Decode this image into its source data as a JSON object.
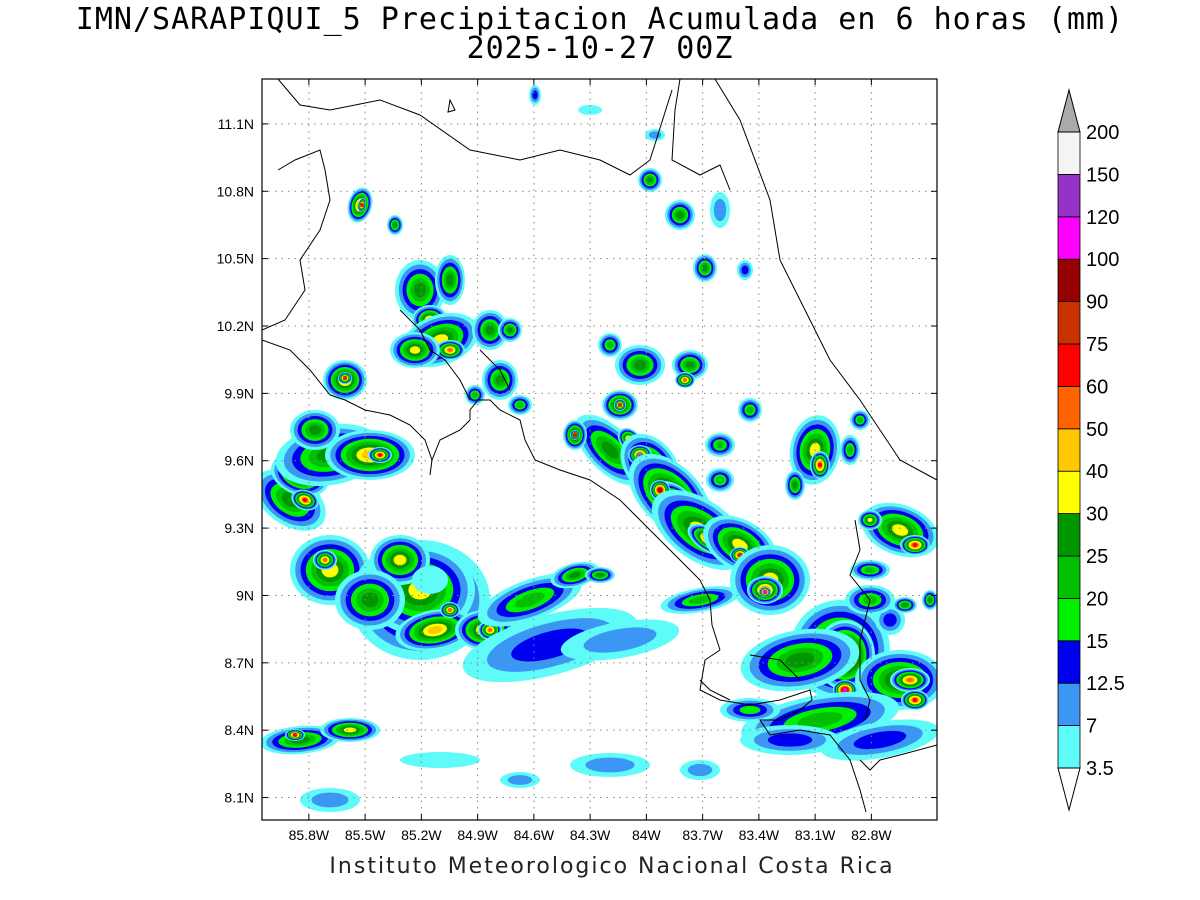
{
  "title_line1": "IMN/SARAPIQUI_5 Precipitacion Acumulada en 6 horas (mm)",
  "title_line2": "2025-10-27 00Z",
  "footer": "Instituto Meteorologico Nacional Costa Rica",
  "map": {
    "lon_range": [
      -86.05,
      -82.45
    ],
    "lat_range": [
      8.0,
      11.3
    ],
    "y_ticks": [
      "11.1N",
      "10.8N",
      "10.5N",
      "10.2N",
      "9.9N",
      "9.6N",
      "9.3N",
      "9N",
      "8.7N",
      "8.4N",
      "8.1N"
    ],
    "x_ticks": [
      "85.8W",
      "85.5W",
      "85.2W",
      "84.9W",
      "84.6W",
      "84.3W",
      "84W",
      "83.7W",
      "83.4W",
      "83.1W",
      "82.8W"
    ],
    "grid": "dotted"
  },
  "colorbar": {
    "levels": [
      "3.5",
      "7",
      "12.5",
      "15",
      "20",
      "25",
      "30",
      "40",
      "50",
      "60",
      "75",
      "90",
      "100",
      "120",
      "150",
      "200"
    ],
    "colors": [
      "#ffffff",
      "#5ffbf9",
      "#3b97f3",
      "#0000f0",
      "#00f000",
      "#00c000",
      "#009600",
      "#ffff00",
      "#ffc800",
      "#ff6400",
      "#ff0000",
      "#c83200",
      "#960000",
      "#ff00ff",
      "#9632c8",
      "#f5f5f5",
      "#aaaaaa"
    ]
  }
}
